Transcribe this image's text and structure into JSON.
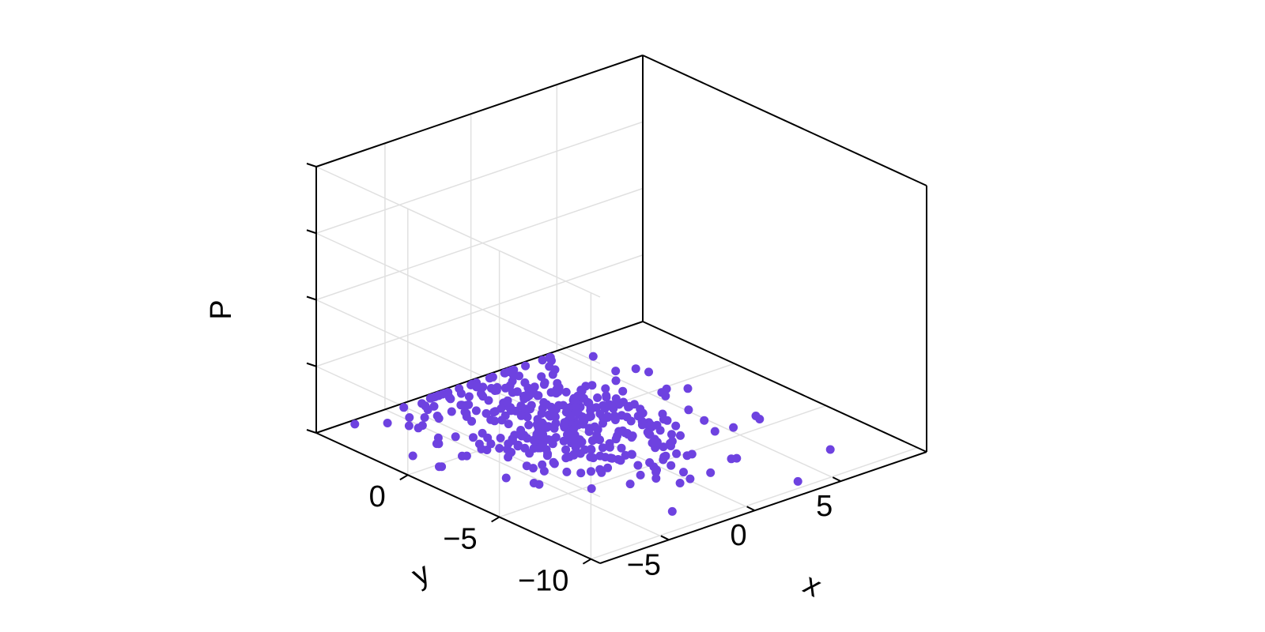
{
  "chart_data": {
    "type": "scatter",
    "projection": "3d",
    "title": "",
    "xlabel": "x",
    "ylabel": "y",
    "zlabel": "P",
    "xlim": [
      -9,
      10
    ],
    "ylim": [
      -10.5,
      5
    ],
    "zlim": [
      0,
      1
    ],
    "x_ticks": [
      {
        "value": -5,
        "label": "−5"
      },
      {
        "value": 0,
        "label": "0"
      },
      {
        "value": 5,
        "label": "5"
      }
    ],
    "y_ticks": [
      {
        "value": -10,
        "label": "−10"
      },
      {
        "value": -5,
        "label": "−5"
      },
      {
        "value": 0,
        "label": "0"
      }
    ],
    "z_ticks": [
      {
        "value": 0,
        "label": ""
      },
      {
        "value": 0.25,
        "label": ""
      },
      {
        "value": 0.5,
        "label": ""
      },
      {
        "value": 0.75,
        "label": ""
      },
      {
        "value": 1,
        "label": ""
      }
    ],
    "grid": true,
    "legend": "none",
    "marker_color": "#6e42e0",
    "grid_color": "#e0e0e0",
    "point_count": 420,
    "distribution": {
      "x_center": 0,
      "y_center": 0,
      "x_spread": 2.6,
      "y_spread": 3.0,
      "z": 0
    }
  }
}
